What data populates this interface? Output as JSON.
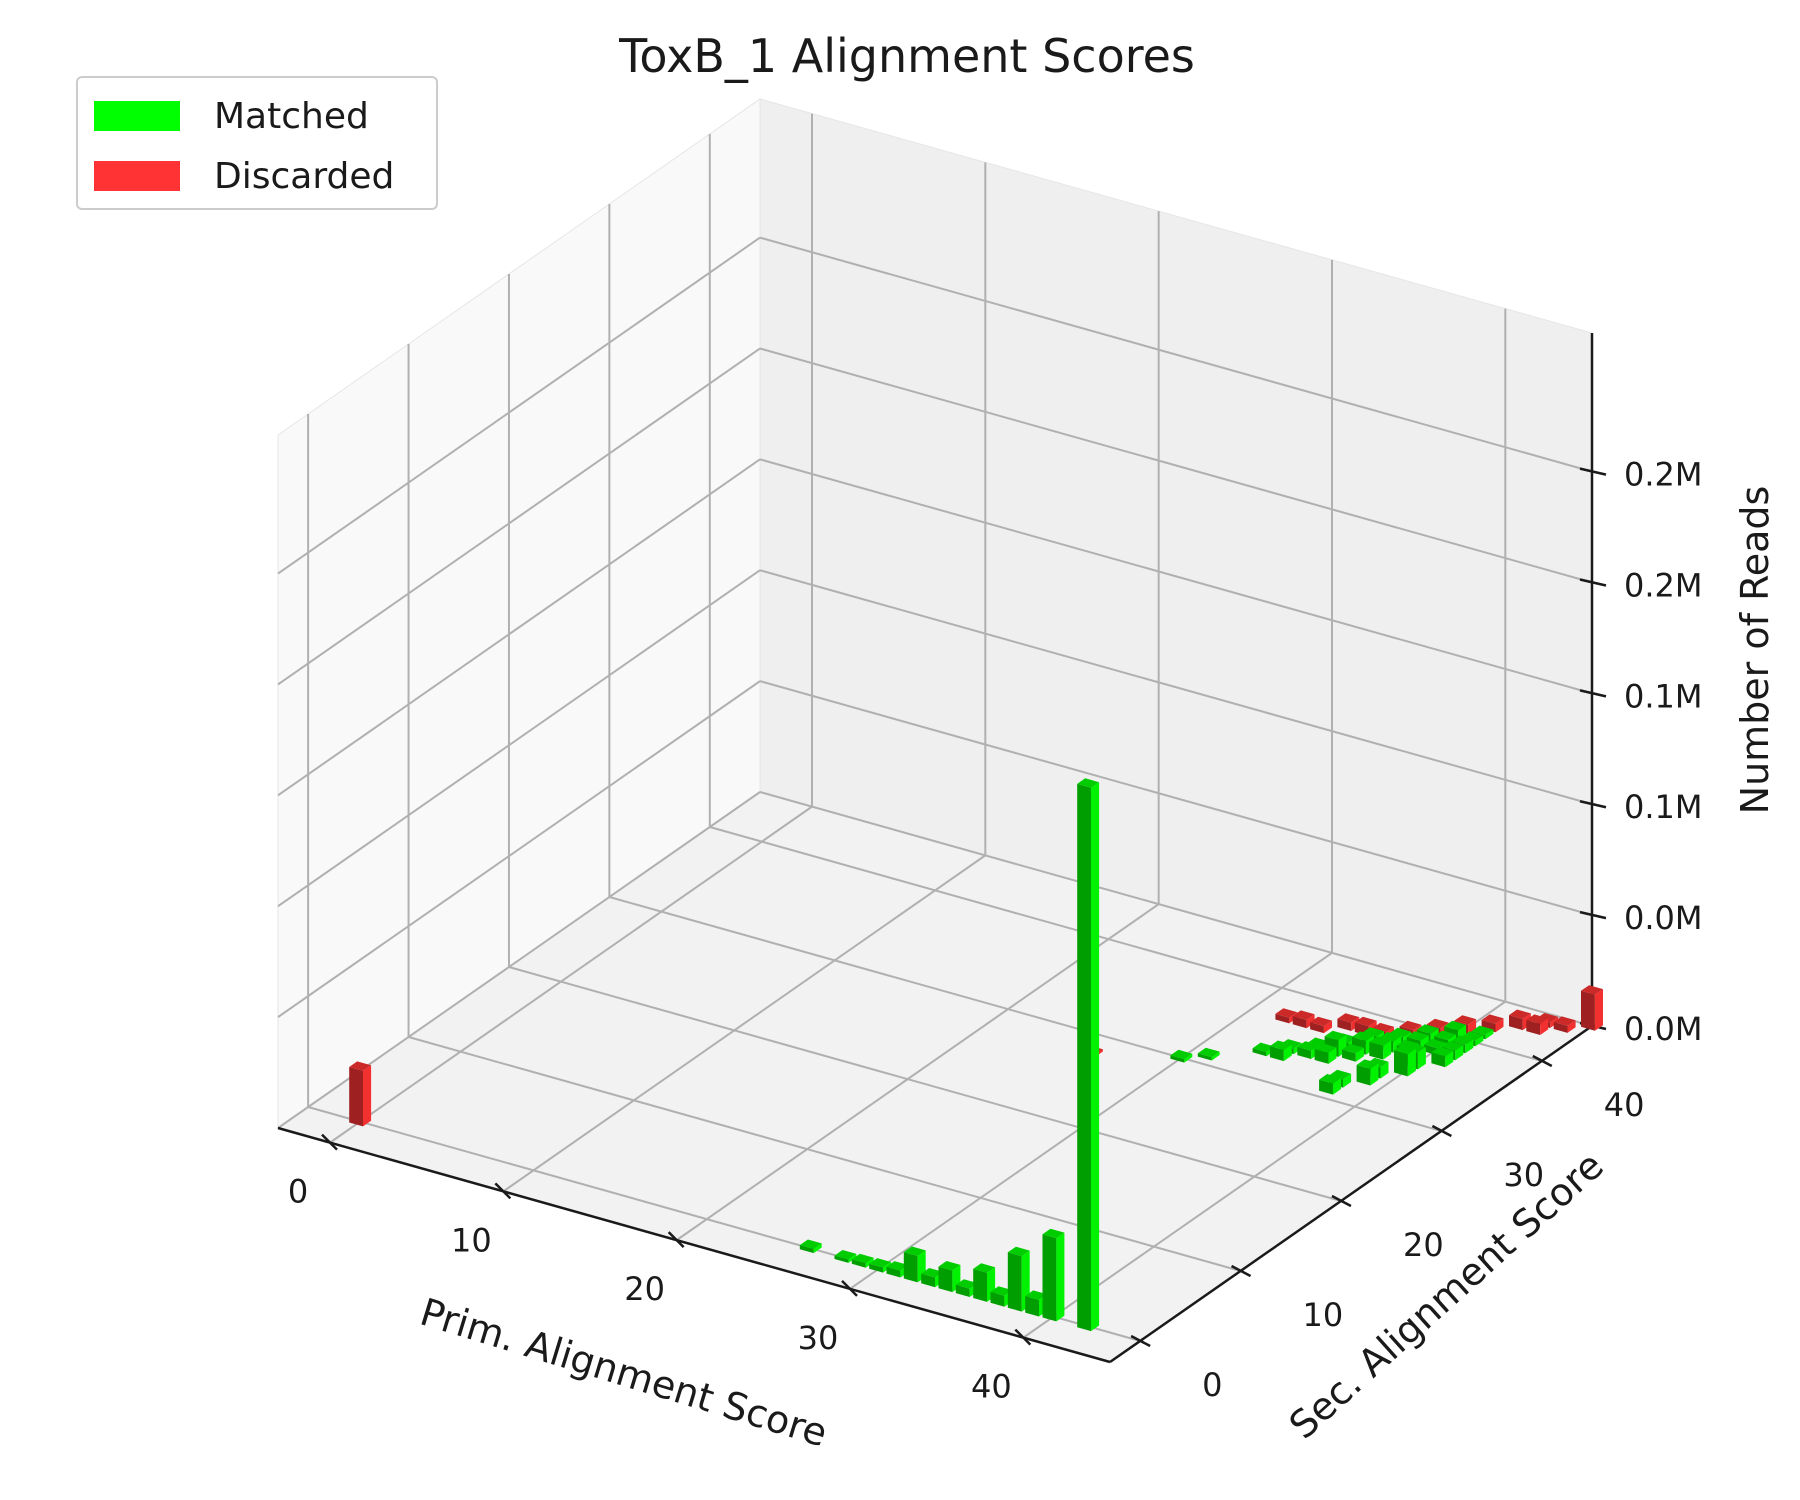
{
  "chart_data": {
    "type": "bar3d",
    "title": "ToxB_1 Alignment Scores",
    "xlabel": "Prim. Alignment Score",
    "ylabel": "Sec. Alignment Score",
    "zlabel": "Number of Reads",
    "xlim": [
      -3,
      45
    ],
    "ylim": [
      -3,
      45
    ],
    "zlim": [
      0,
      0.25
    ],
    "xticks": [
      {
        "value": 0,
        "label": "0"
      },
      {
        "value": 10,
        "label": "10"
      },
      {
        "value": 20,
        "label": "20"
      },
      {
        "value": 30,
        "label": "30"
      },
      {
        "value": 40,
        "label": "40"
      }
    ],
    "yticks": [
      {
        "value": 0,
        "label": "0"
      },
      {
        "value": 10,
        "label": "10"
      },
      {
        "value": 20,
        "label": "20"
      },
      {
        "value": 30,
        "label": "30"
      },
      {
        "value": 40,
        "label": "40"
      }
    ],
    "zticks": [
      {
        "value": 0.0,
        "label": "0.0M"
      },
      {
        "value": 0.04,
        "label": "0.0M"
      },
      {
        "value": 0.08,
        "label": "0.1M"
      },
      {
        "value": 0.12,
        "label": "0.1M"
      },
      {
        "value": 0.16,
        "label": "0.2M"
      },
      {
        "value": 0.2,
        "label": "0.2M"
      }
    ],
    "zunit": "M",
    "legend": {
      "placement": "top-left"
    },
    "grid": true,
    "series": [
      {
        "name": "Matched",
        "color": "#00ff00",
        "points": [
          [
            26,
            0,
            0.0015
          ],
          [
            28,
            0,
            0.0012
          ],
          [
            29,
            0,
            0.0016
          ],
          [
            30,
            0,
            0.0018
          ],
          [
            31,
            0,
            0.0025
          ],
          [
            32,
            0,
            0.0095
          ],
          [
            33,
            0,
            0.0035
          ],
          [
            34,
            0,
            0.0078
          ],
          [
            35,
            0,
            0.003
          ],
          [
            36,
            0,
            0.0105
          ],
          [
            37,
            0,
            0.004
          ],
          [
            38,
            0,
            0.02
          ],
          [
            39,
            0,
            0.006
          ],
          [
            40,
            0,
            0.03
          ],
          [
            42,
            0,
            0.196
          ],
          [
            30,
            30,
            0.0012
          ],
          [
            31,
            31,
            0.0012
          ],
          [
            33,
            33,
            0.0015
          ],
          [
            34,
            34,
            0.002
          ],
          [
            35,
            35,
            0.0018
          ],
          [
            36,
            36,
            0.0025
          ],
          [
            37,
            37,
            0.004
          ],
          [
            38,
            38,
            0.003
          ],
          [
            39,
            39,
            0.0035
          ],
          [
            40,
            40,
            0.004
          ],
          [
            34,
            33,
            0.004
          ],
          [
            35,
            34,
            0.003
          ],
          [
            36,
            35,
            0.006
          ],
          [
            37,
            36,
            0.005
          ],
          [
            38,
            37,
            0.004
          ],
          [
            39,
            38,
            0.0035
          ],
          [
            40,
            39,
            0.003
          ],
          [
            36,
            34,
            0.004
          ],
          [
            37,
            35,
            0.003
          ],
          [
            38,
            36,
            0.005
          ],
          [
            39,
            37,
            0.003
          ],
          [
            40,
            38,
            0.0025
          ],
          [
            38,
            31,
            0.004
          ],
          [
            38,
            32,
            0.003
          ],
          [
            39,
            33,
            0.006
          ],
          [
            39,
            34,
            0.004
          ],
          [
            40,
            35,
            0.008
          ],
          [
            40,
            36,
            0.006
          ],
          [
            41,
            37,
            0.004
          ],
          [
            41,
            38,
            0.0035
          ],
          [
            41,
            39,
            0.003
          ],
          [
            41,
            40,
            0.002
          ],
          [
            41,
            41,
            0.0015
          ]
        ]
      },
      {
        "name": "Discarded",
        "color": "#ff3333",
        "points": [
          [
            0,
            0,
            0.02
          ],
          [
            26,
            28,
            0.0008
          ],
          [
            32,
            37,
            0.002
          ],
          [
            33,
            37,
            0.003
          ],
          [
            34,
            37,
            0.0025
          ],
          [
            35,
            38,
            0.003
          ],
          [
            36,
            38,
            0.0035
          ],
          [
            37,
            38,
            0.003
          ],
          [
            38,
            39,
            0.003
          ],
          [
            39,
            40,
            0.003
          ],
          [
            40,
            41,
            0.0035
          ],
          [
            41,
            42,
            0.003
          ],
          [
            42,
            43,
            0.004
          ],
          [
            43,
            43,
            0.004
          ],
          [
            43,
            44,
            0.002
          ],
          [
            44,
            44,
            0.0025
          ],
          [
            45,
            45,
            0.013
          ]
        ]
      }
    ]
  }
}
